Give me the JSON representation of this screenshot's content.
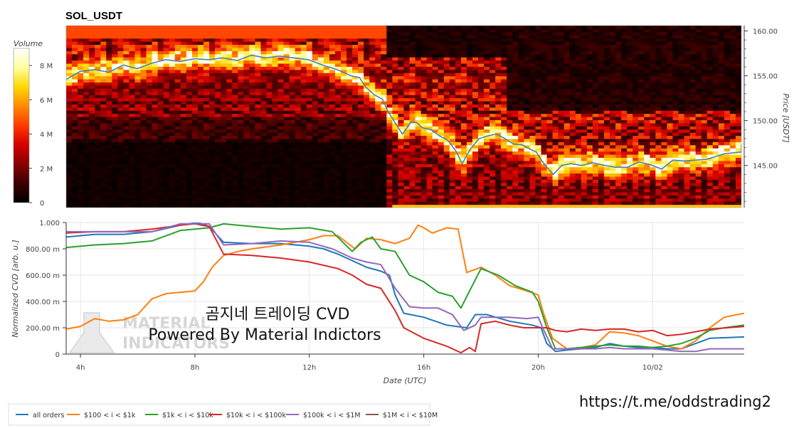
{
  "chart_data": [
    {
      "type": "heatmap",
      "title": "SOL_USDT",
      "ylabel": "Price [USDT]",
      "ylim": [
        140.3,
        160.6
      ],
      "y_ticks": [
        "160.00",
        "155.00",
        "150.00",
        "145.00"
      ],
      "y_tick_values": [
        160,
        155,
        150,
        145
      ],
      "colorbar": {
        "label": "Volume",
        "range": [
          0,
          9000000
        ],
        "ticks": [
          "8 M",
          "6 M",
          "4 M",
          "2 M",
          "0"
        ],
        "tick_values": [
          8000000,
          6000000,
          4000000,
          2000000,
          0
        ],
        "colors": [
          "#000000",
          "#3a0000",
          "#8a0000",
          "#d40000",
          "#ff3a00",
          "#ff8a00",
          "#ffd800",
          "#ffffa0",
          "#ffffff"
        ]
      },
      "price_line_color": "#4a7fb5",
      "price_series": {
        "x_hours": [
          3.5,
          4.0,
          4.5,
          5.0,
          5.5,
          6.0,
          6.5,
          7.0,
          7.5,
          8.0,
          8.5,
          9.0,
          9.5,
          10.0,
          10.5,
          11.0,
          11.5,
          12.0,
          12.5,
          13.0,
          13.5,
          13.8,
          14.0,
          14.3,
          14.6,
          14.8,
          15.0,
          15.3,
          15.6,
          15.8,
          16.0,
          16.3,
          16.6,
          16.9,
          17.2,
          17.4,
          17.7,
          18.0,
          18.3,
          18.6,
          18.9,
          19.2,
          19.5,
          19.8,
          20.0,
          20.2,
          20.4,
          20.6,
          20.9,
          21.2,
          21.6,
          22.0,
          22.4,
          22.8,
          23.2,
          23.6,
          24.0,
          24.4,
          24.8,
          25.2,
          25.6,
          26.0,
          26.6,
          27.2,
          27.2
        ],
        "price": [
          154.6,
          155.5,
          155.7,
          155.4,
          156.2,
          155.8,
          156.4,
          156.8,
          156.6,
          156.9,
          156.8,
          157.0,
          156.7,
          157.3,
          157.0,
          157.2,
          157.0,
          156.8,
          156.2,
          155.7,
          155.0,
          154.8,
          153.8,
          152.9,
          152.4,
          151.0,
          150.0,
          148.5,
          149.8,
          149.8,
          149.2,
          149.0,
          148.3,
          147.8,
          146.5,
          145.2,
          146.9,
          148.0,
          148.3,
          148.5,
          148.0,
          147.4,
          147.3,
          146.8,
          146.5,
          145.5,
          144.7,
          144.0,
          145.0,
          145.2,
          145.0,
          145.3,
          145.0,
          144.8,
          144.8,
          145.4,
          145.1,
          144.6,
          145.6,
          145.5,
          145.6,
          145.7,
          146.3,
          146.5,
          147.3
        ]
      }
    },
    {
      "type": "line",
      "xlabel": "Date (UTC)",
      "ylabel": "Normalized CVD [arb. u.]",
      "ylim": [
        0,
        1.0
      ],
      "xlim": [
        3.5,
        27.2
      ],
      "x_ticks": [
        "4h",
        "8h",
        "12h",
        "16h",
        "20h",
        "10/02"
      ],
      "x_tick_hours": [
        4,
        8,
        12,
        16,
        20,
        24
      ],
      "y_ticks": [
        "1.000",
        "800.00 m",
        "600.00 m",
        "400.00 m",
        "200.00 m",
        "0"
      ],
      "y_tick_values": [
        1.0,
        0.8,
        0.6,
        0.4,
        0.2,
        0
      ],
      "series": [
        {
          "name": "all orders",
          "color": "#1f77b4",
          "x": [
            3.5,
            4.5,
            5.5,
            6.5,
            7.5,
            8.1,
            8.5,
            9.0,
            10.0,
            11.0,
            12.0,
            12.5,
            13.0,
            13.5,
            14.0,
            14.5,
            14.8,
            15.0,
            15.3,
            16.0,
            16.8,
            17.5,
            17.8,
            18.2,
            19.0,
            19.8,
            20.1,
            20.3,
            20.6,
            21.0,
            21.5,
            22.0,
            22.5,
            23.0,
            23.5,
            24.0,
            24.5,
            25.0,
            25.5,
            26.0,
            27.2
          ],
          "y": [
            0.89,
            0.91,
            0.91,
            0.93,
            0.98,
            1.0,
            0.97,
            0.85,
            0.84,
            0.84,
            0.82,
            0.8,
            0.76,
            0.71,
            0.66,
            0.63,
            0.6,
            0.45,
            0.31,
            0.28,
            0.22,
            0.2,
            0.3,
            0.3,
            0.25,
            0.22,
            0.2,
            0.08,
            0.02,
            0.03,
            0.04,
            0.05,
            0.08,
            0.06,
            0.05,
            0.05,
            0.04,
            0.04,
            0.08,
            0.12,
            0.13
          ]
        },
        {
          "name": "$100 < i < $1k",
          "color": "#ff7f0e",
          "x": [
            3.5,
            4.0,
            4.5,
            5.0,
            5.5,
            6.0,
            6.5,
            7.0,
            7.5,
            8.0,
            8.3,
            8.6,
            9.0,
            9.5,
            10.0,
            11.0,
            12.0,
            12.5,
            13.0,
            13.6,
            14.0,
            14.5,
            15.0,
            15.5,
            15.8,
            16.0,
            16.3,
            16.8,
            17.2,
            17.5,
            18.0,
            18.5,
            19.0,
            19.6,
            20.0,
            20.2,
            20.5,
            21.0,
            21.5,
            22.0,
            22.5,
            23.0,
            23.5,
            24.0,
            24.5,
            25.0,
            25.5,
            26.0,
            26.5,
            27.2
          ],
          "y": [
            0.19,
            0.21,
            0.27,
            0.25,
            0.26,
            0.3,
            0.42,
            0.46,
            0.47,
            0.48,
            0.55,
            0.66,
            0.75,
            0.78,
            0.8,
            0.83,
            0.87,
            0.9,
            0.9,
            0.8,
            0.88,
            0.87,
            0.84,
            0.88,
            0.98,
            0.96,
            0.92,
            0.96,
            0.95,
            0.62,
            0.66,
            0.6,
            0.52,
            0.48,
            0.45,
            0.3,
            0.12,
            0.04,
            0.05,
            0.07,
            0.17,
            0.16,
            0.14,
            0.1,
            0.06,
            0.04,
            0.1,
            0.2,
            0.28,
            0.31
          ]
        },
        {
          "name": "$1k < i < $10k",
          "color": "#2ca02c",
          "x": [
            3.5,
            4.5,
            5.5,
            6.5,
            7.5,
            8.5,
            9.0,
            10.0,
            11.0,
            12.0,
            12.8,
            13.5,
            13.8,
            14.2,
            14.5,
            15.0,
            15.5,
            16.0,
            16.5,
            17.0,
            17.3,
            17.6,
            18.0,
            18.6,
            19.2,
            19.8,
            20.0,
            20.3,
            20.6,
            21.0,
            21.5,
            22.0,
            22.5,
            23.0,
            23.5,
            24.0,
            24.5,
            25.0,
            25.5,
            26.0,
            26.5,
            27.2
          ],
          "y": [
            0.81,
            0.83,
            0.84,
            0.86,
            0.94,
            0.96,
            0.99,
            0.97,
            0.95,
            0.96,
            0.93,
            0.78,
            0.85,
            0.89,
            0.8,
            0.78,
            0.6,
            0.55,
            0.47,
            0.44,
            0.35,
            0.48,
            0.65,
            0.6,
            0.52,
            0.47,
            0.4,
            0.2,
            0.04,
            0.04,
            0.05,
            0.06,
            0.07,
            0.06,
            0.06,
            0.05,
            0.06,
            0.08,
            0.12,
            0.18,
            0.2,
            0.22
          ]
        },
        {
          "name": "$10k < i < $100k",
          "color": "#d62728",
          "x": [
            3.5,
            4.5,
            5.5,
            6.5,
            7.5,
            8.0,
            8.5,
            9.0,
            10.0,
            11.0,
            12.0,
            13.0,
            13.5,
            14.0,
            14.5,
            15.0,
            15.3,
            16.0,
            16.8,
            17.3,
            17.6,
            17.8,
            18.0,
            18.5,
            19.0,
            19.5,
            20.0,
            20.3,
            20.6,
            21.0,
            21.5,
            22.0,
            22.5,
            23.0,
            23.5,
            24.0,
            24.5,
            25.0,
            25.5,
            26.0,
            27.2
          ],
          "y": [
            0.92,
            0.93,
            0.93,
            0.95,
            0.98,
            0.99,
            0.97,
            0.76,
            0.75,
            0.73,
            0.7,
            0.65,
            0.6,
            0.53,
            0.5,
            0.33,
            0.2,
            0.12,
            0.06,
            0.01,
            0.05,
            0.02,
            0.23,
            0.25,
            0.22,
            0.2,
            0.2,
            0.2,
            0.18,
            0.17,
            0.19,
            0.18,
            0.19,
            0.19,
            0.17,
            0.18,
            0.14,
            0.15,
            0.17,
            0.19,
            0.21
          ]
        },
        {
          "name": "$100k < i < $1M",
          "color": "#9467bd",
          "x": [
            3.5,
            4.5,
            5.5,
            6.5,
            7.5,
            8.5,
            9.0,
            10.0,
            11.0,
            12.0,
            12.8,
            13.5,
            14.0,
            14.5,
            15.0,
            15.5,
            16.0,
            16.5,
            17.0,
            17.4,
            17.8,
            18.0,
            18.5,
            19.0,
            19.6,
            20.0,
            20.2,
            20.5,
            21.0,
            21.5,
            22.0,
            22.5,
            23.0,
            23.5,
            24.0,
            24.5,
            25.0,
            25.5,
            26.0,
            27.2
          ],
          "y": [
            0.93,
            0.93,
            0.93,
            0.93,
            0.99,
            0.99,
            0.83,
            0.84,
            0.86,
            0.85,
            0.8,
            0.73,
            0.7,
            0.68,
            0.5,
            0.36,
            0.35,
            0.35,
            0.3,
            0.18,
            0.22,
            0.28,
            0.28,
            0.28,
            0.27,
            0.28,
            0.18,
            0.04,
            0.04,
            0.04,
            0.04,
            0.05,
            0.04,
            0.04,
            0.04,
            0.03,
            0.02,
            0.02,
            0.04,
            0.04
          ]
        },
        {
          "name": "$1M < i < $10M",
          "color": "#8c564b",
          "x": [],
          "y": []
        }
      ],
      "legend_position": "bottom-left"
    }
  ],
  "overlay": {
    "watermark_line1": "곰지네 트레이딩 CVD",
    "watermark_line2": "Powered By Material Indictors",
    "url": "https://t.me/oddstrading2",
    "logo_line1": "MATERIAL",
    "logo_line2": "INDICATORS"
  }
}
